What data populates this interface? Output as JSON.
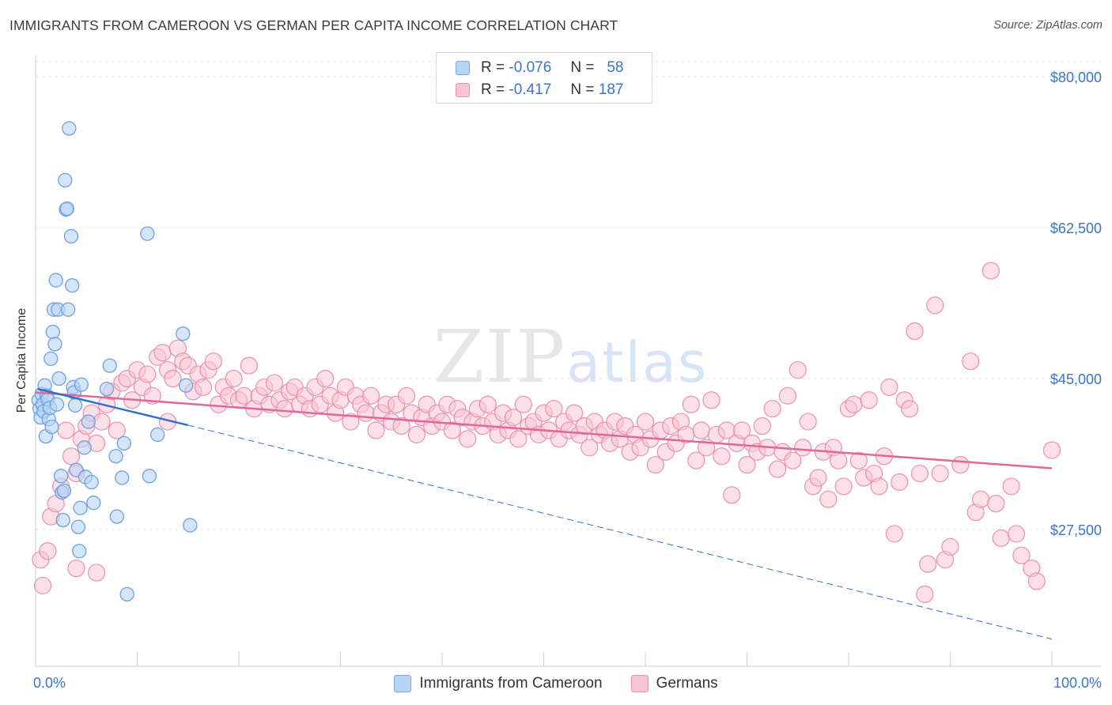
{
  "header": {
    "title": "IMMIGRANTS FROM CAMEROON VS GERMAN PER CAPITA INCOME CORRELATION CHART",
    "source": "Source: ZipAtlas.com"
  },
  "watermark": {
    "zip": "ZIP",
    "atlas": "atlas"
  },
  "legend_top": {
    "rows": [
      {
        "r_label": "R =",
        "r_value": "-0.076",
        "n_label": "N =",
        "n_value": "58"
      },
      {
        "r_label": "R =",
        "r_value": "-0.417",
        "n_label": "N =",
        "n_value": "187"
      }
    ]
  },
  "legend_bottom": {
    "items": [
      "Immigrants from Cameroon",
      "Germans"
    ]
  },
  "colors": {
    "blue_fill": "#b8d4f5",
    "blue_stroke": "#6fa0dd",
    "blue_line": "#2f6fd0",
    "pink_fill": "#f9c4d4",
    "pink_stroke": "#ea8fae",
    "pink_line": "#e0679a",
    "axis_label": "#3b74c8"
  },
  "chart_data": {
    "type": "scatter",
    "title": "IMMIGRANTS FROM CAMEROON VS GERMAN PER CAPITA INCOME CORRELATION CHART",
    "ylabel": "Per Capita Income",
    "xlim": [
      0,
      100
    ],
    "ylim": [
      11000,
      82000
    ],
    "x_tick_labels": [
      "0.0%",
      "100.0%"
    ],
    "y_ticks": [
      27500,
      45000,
      62500,
      80000
    ],
    "y_tick_labels": [
      "$27,500",
      "$45,000",
      "$62,500",
      "$80,000"
    ],
    "grid": true,
    "series": [
      {
        "name": "Immigrants from Cameroon",
        "r": -0.076,
        "n": 58,
        "trend_solid": [
          [
            0.2,
            43800
          ],
          [
            15,
            39600
          ]
        ],
        "trend_dashed": [
          [
            15,
            39600
          ],
          [
            100,
            14800
          ]
        ],
        "points": [
          [
            0.3,
            42500
          ],
          [
            0.4,
            41500
          ],
          [
            0.5,
            40500
          ],
          [
            0.6,
            43200
          ],
          [
            0.7,
            42000
          ],
          [
            0.8,
            41200
          ],
          [
            0.9,
            44200
          ],
          [
            1.0,
            38300
          ],
          [
            1.1,
            43000
          ],
          [
            1.2,
            42600
          ],
          [
            1.3,
            40300
          ],
          [
            1.4,
            41600
          ],
          [
            1.5,
            47300
          ],
          [
            1.6,
            39400
          ],
          [
            1.7,
            50400
          ],
          [
            1.8,
            53000
          ],
          [
            1.9,
            49000
          ],
          [
            2.0,
            56400
          ],
          [
            2.1,
            42000
          ],
          [
            2.2,
            53000
          ],
          [
            2.3,
            45000
          ],
          [
            2.5,
            33700
          ],
          [
            2.6,
            31800
          ],
          [
            2.7,
            28600
          ],
          [
            2.8,
            32000
          ],
          [
            2.9,
            68000
          ],
          [
            3.0,
            64600
          ],
          [
            3.1,
            64700
          ],
          [
            3.2,
            53000
          ],
          [
            3.3,
            74000
          ],
          [
            3.5,
            61500
          ],
          [
            3.6,
            55800
          ],
          [
            3.7,
            44000
          ],
          [
            3.8,
            43400
          ],
          [
            3.9,
            41900
          ],
          [
            4.0,
            34400
          ],
          [
            4.2,
            27800
          ],
          [
            4.3,
            25000
          ],
          [
            4.4,
            30000
          ],
          [
            4.5,
            44300
          ],
          [
            4.8,
            37000
          ],
          [
            4.9,
            33600
          ],
          [
            5.2,
            40000
          ],
          [
            5.5,
            33000
          ],
          [
            5.7,
            30600
          ],
          [
            7.0,
            43800
          ],
          [
            7.3,
            46500
          ],
          [
            7.9,
            36000
          ],
          [
            8.0,
            29000
          ],
          [
            8.5,
            33500
          ],
          [
            8.7,
            37500
          ],
          [
            9.0,
            20000
          ],
          [
            11.0,
            61800
          ],
          [
            11.2,
            33700
          ],
          [
            14.5,
            50200
          ],
          [
            15.2,
            28000
          ],
          [
            14.8,
            44200
          ],
          [
            12.0,
            38500
          ]
        ]
      },
      {
        "name": "Germans",
        "r": -0.417,
        "n": 187,
        "trend_solid": [
          [
            0,
            43400
          ],
          [
            100,
            34600
          ]
        ],
        "points": [
          [
            0.5,
            24000
          ],
          [
            0.7,
            21000
          ],
          [
            1.2,
            25000
          ],
          [
            1.5,
            29000
          ],
          [
            2.0,
            30500
          ],
          [
            2.5,
            32500
          ],
          [
            3.0,
            39000
          ],
          [
            3.5,
            36000
          ],
          [
            4.0,
            34000
          ],
          [
            4.5,
            38000
          ],
          [
            5.0,
            39500
          ],
          [
            5.5,
            41000
          ],
          [
            6.0,
            37500
          ],
          [
            6.5,
            40000
          ],
          [
            7.0,
            42000
          ],
          [
            7.5,
            43500
          ],
          [
            8.0,
            39000
          ],
          [
            8.5,
            44500
          ],
          [
            9.0,
            45000
          ],
          [
            9.5,
            42500
          ],
          [
            10.0,
            46000
          ],
          [
            10.5,
            44000
          ],
          [
            11.0,
            45500
          ],
          [
            11.5,
            43000
          ],
          [
            12.0,
            47500
          ],
          [
            12.5,
            48000
          ],
          [
            13.0,
            46000
          ],
          [
            13.5,
            45000
          ],
          [
            14.0,
            48500
          ],
          [
            14.5,
            47000
          ],
          [
            15.0,
            46500
          ],
          [
            15.5,
            43500
          ],
          [
            16.0,
            45500
          ],
          [
            16.5,
            44000
          ],
          [
            17.0,
            46000
          ],
          [
            17.5,
            47000
          ],
          [
            18.0,
            42000
          ],
          [
            18.5,
            44000
          ],
          [
            19.0,
            43000
          ],
          [
            19.5,
            45000
          ],
          [
            20.0,
            42500
          ],
          [
            20.5,
            43000
          ],
          [
            21.0,
            46500
          ],
          [
            21.5,
            41500
          ],
          [
            22.0,
            43000
          ],
          [
            22.5,
            44000
          ],
          [
            23.0,
            42000
          ],
          [
            23.5,
            44500
          ],
          [
            24.0,
            42500
          ],
          [
            24.5,
            41500
          ],
          [
            25.0,
            43500
          ],
          [
            25.5,
            44000
          ],
          [
            26.0,
            42000
          ],
          [
            26.5,
            43000
          ],
          [
            27.0,
            41500
          ],
          [
            27.5,
            44000
          ],
          [
            28.0,
            42000
          ],
          [
            28.5,
            45000
          ],
          [
            29.0,
            43000
          ],
          [
            29.5,
            41000
          ],
          [
            30.0,
            42500
          ],
          [
            30.5,
            44000
          ],
          [
            31.0,
            40000
          ],
          [
            31.5,
            43000
          ],
          [
            32.0,
            42000
          ],
          [
            32.5,
            41000
          ],
          [
            33.0,
            43000
          ],
          [
            33.5,
            39000
          ],
          [
            34.0,
            41000
          ],
          [
            34.5,
            42000
          ],
          [
            35.0,
            40000
          ],
          [
            35.5,
            42000
          ],
          [
            36.0,
            39500
          ],
          [
            36.5,
            43000
          ],
          [
            37.0,
            41000
          ],
          [
            37.5,
            38500
          ],
          [
            38.0,
            40500
          ],
          [
            38.5,
            42000
          ],
          [
            39.0,
            39500
          ],
          [
            39.5,
            41000
          ],
          [
            40.0,
            40000
          ],
          [
            40.5,
            42000
          ],
          [
            41.0,
            39000
          ],
          [
            41.5,
            41500
          ],
          [
            42.0,
            40500
          ],
          [
            42.5,
            38000
          ],
          [
            43.0,
            40000
          ],
          [
            43.5,
            41500
          ],
          [
            44.0,
            39500
          ],
          [
            44.5,
            42000
          ],
          [
            45.0,
            40000
          ],
          [
            45.5,
            38500
          ],
          [
            46.0,
            41000
          ],
          [
            46.5,
            39000
          ],
          [
            47.0,
            40500
          ],
          [
            47.5,
            38000
          ],
          [
            48.0,
            42000
          ],
          [
            48.5,
            39500
          ],
          [
            49.0,
            40000
          ],
          [
            49.5,
            38500
          ],
          [
            50.0,
            41000
          ],
          [
            50.5,
            39000
          ],
          [
            51.0,
            41500
          ],
          [
            51.5,
            38000
          ],
          [
            52.0,
            40000
          ],
          [
            52.5,
            39000
          ],
          [
            53.0,
            41000
          ],
          [
            53.5,
            38500
          ],
          [
            54.0,
            39500
          ],
          [
            54.5,
            37000
          ],
          [
            55.0,
            40000
          ],
          [
            55.5,
            38500
          ],
          [
            56.0,
            39000
          ],
          [
            56.5,
            37500
          ],
          [
            57.0,
            40000
          ],
          [
            57.5,
            38000
          ],
          [
            58.0,
            39500
          ],
          [
            58.5,
            36500
          ],
          [
            59.0,
            38500
          ],
          [
            59.5,
            37000
          ],
          [
            60.0,
            40000
          ],
          [
            60.5,
            38000
          ],
          [
            61.0,
            35000
          ],
          [
            61.5,
            39000
          ],
          [
            62.0,
            36500
          ],
          [
            62.5,
            39500
          ],
          [
            63.0,
            37500
          ],
          [
            63.5,
            40000
          ],
          [
            64.0,
            38500
          ],
          [
            64.5,
            42000
          ],
          [
            65.0,
            35500
          ],
          [
            65.5,
            39000
          ],
          [
            66.0,
            37000
          ],
          [
            66.5,
            42500
          ],
          [
            67.0,
            38500
          ],
          [
            67.5,
            36000
          ],
          [
            68.0,
            39000
          ],
          [
            68.5,
            31500
          ],
          [
            69.0,
            37500
          ],
          [
            69.5,
            39000
          ],
          [
            70.0,
            35000
          ],
          [
            70.5,
            37500
          ],
          [
            71.0,
            36500
          ],
          [
            71.5,
            39500
          ],
          [
            72.0,
            37000
          ],
          [
            72.5,
            41500
          ],
          [
            73.0,
            34500
          ],
          [
            73.5,
            36500
          ],
          [
            74.0,
            43000
          ],
          [
            74.5,
            35500
          ],
          [
            75.0,
            46000
          ],
          [
            75.5,
            37000
          ],
          [
            76.0,
            40000
          ],
          [
            76.5,
            32500
          ],
          [
            77.0,
            33500
          ],
          [
            77.5,
            36500
          ],
          [
            78.0,
            31000
          ],
          [
            78.5,
            37000
          ],
          [
            79.0,
            35500
          ],
          [
            79.5,
            32500
          ],
          [
            80.0,
            41500
          ],
          [
            80.5,
            42000
          ],
          [
            81.0,
            35500
          ],
          [
            81.5,
            33500
          ],
          [
            82.0,
            42500
          ],
          [
            82.5,
            34000
          ],
          [
            83.0,
            32500
          ],
          [
            83.5,
            36000
          ],
          [
            84.0,
            44000
          ],
          [
            84.5,
            27000
          ],
          [
            85.0,
            33000
          ],
          [
            85.5,
            42500
          ],
          [
            86.0,
            41500
          ],
          [
            86.5,
            50500
          ],
          [
            87.0,
            34000
          ],
          [
            87.5,
            20000
          ],
          [
            87.8,
            23500
          ],
          [
            88.5,
            53500
          ],
          [
            89.0,
            34000
          ],
          [
            89.5,
            24000
          ],
          [
            90.0,
            25500
          ],
          [
            91.0,
            35000
          ],
          [
            92.0,
            47000
          ],
          [
            92.5,
            29500
          ],
          [
            93.0,
            31000
          ],
          [
            94.0,
            57500
          ],
          [
            94.5,
            30500
          ],
          [
            95.0,
            26500
          ],
          [
            96.0,
            32500
          ],
          [
            96.5,
            27000
          ],
          [
            97.0,
            24500
          ],
          [
            98.0,
            23000
          ],
          [
            98.5,
            21500
          ],
          [
            100.0,
            36700
          ],
          [
            13.0,
            40000
          ],
          [
            4.0,
            23000
          ],
          [
            6.0,
            22500
          ]
        ]
      }
    ]
  }
}
